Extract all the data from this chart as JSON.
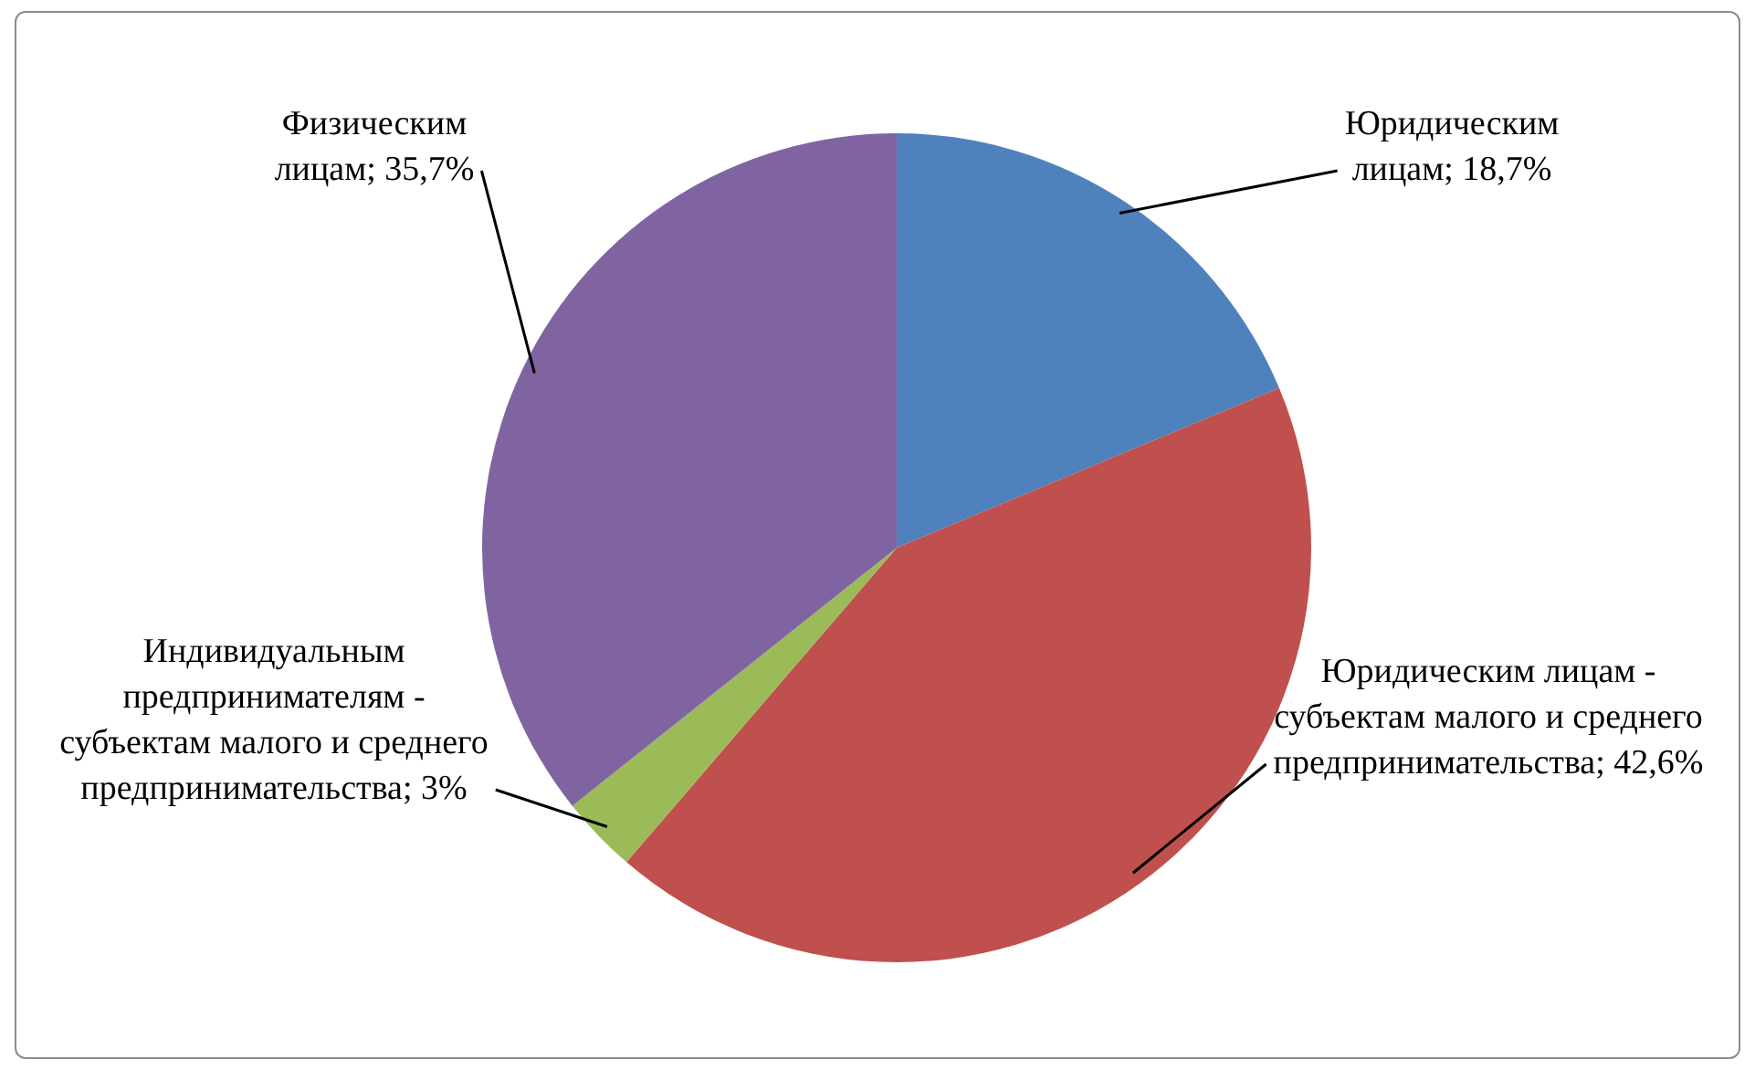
{
  "chart_data": {
    "type": "pie",
    "categories": [
      "Юридическим лицам",
      "Юридическим лицам - субъектам малого и среднего предпринимательства",
      "Индивидуальным предпринимателям - субъектам малого и среднего предпринимательства",
      "Физическим лицам"
    ],
    "values": [
      18.7,
      42.6,
      3,
      35.7
    ],
    "value_labels": [
      "18,7%",
      "42,6%",
      "3%",
      "35,7%"
    ],
    "colors": [
      "#4f81bd",
      "#c0504d",
      "#9bbb59",
      "#8064a2"
    ]
  }
}
